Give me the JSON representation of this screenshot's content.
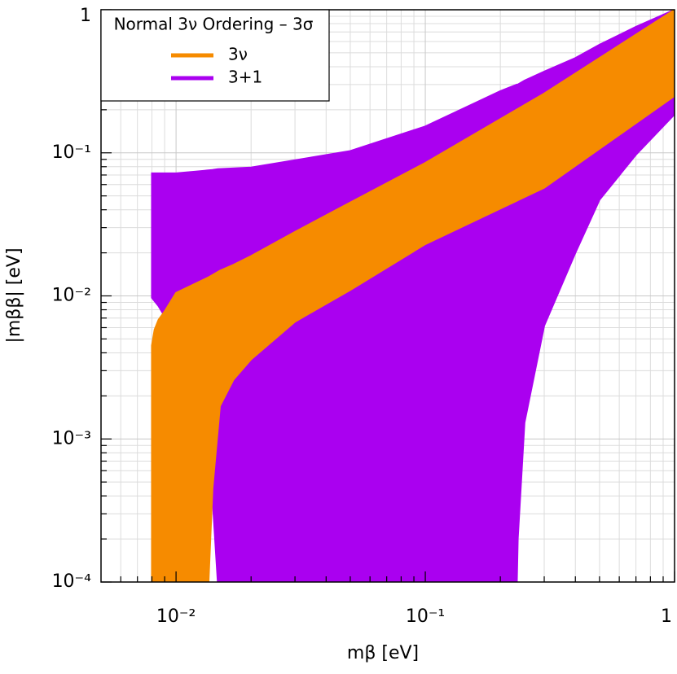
{
  "chart_data": {
    "type": "area-band",
    "xlabel": "mβ   [eV]",
    "ylabel": "|mββ|   [eV]",
    "xscale": "log",
    "yscale": "log",
    "grid": true,
    "xlim": [
      0.005,
      1
    ],
    "ylim": [
      0.0001,
      1
    ],
    "xticks": [
      {
        "value": 0.01,
        "label": "10⁻²"
      },
      {
        "value": 0.1,
        "label": "10⁻¹"
      },
      1
    ],
    "yticks": [
      {
        "value": 0.0001,
        "label": "10⁻⁴"
      },
      {
        "value": 0.001,
        "label": "10⁻³"
      },
      {
        "value": 0.01,
        "label": "10⁻²"
      },
      {
        "value": 0.1,
        "label": "10⁻¹"
      },
      1
    ],
    "xminor": [
      0.006,
      0.007,
      0.008,
      0.009,
      0.02,
      0.03,
      0.04,
      0.05,
      0.06,
      0.07,
      0.08,
      0.09,
      0.2,
      0.3,
      0.4,
      0.5,
      0.6,
      0.7,
      0.8,
      0.9
    ],
    "yminor": [
      0.0002,
      0.0003,
      0.0004,
      0.0005,
      0.0006,
      0.0007,
      0.0008,
      0.0009,
      0.002,
      0.003,
      0.004,
      0.005,
      0.006,
      0.007,
      0.008,
      0.009,
      0.02,
      0.03,
      0.04,
      0.05,
      0.06,
      0.07,
      0.08,
      0.09,
      0.2,
      0.3,
      0.4,
      0.5,
      0.6,
      0.7,
      0.8,
      0.9
    ],
    "legend_title": "Normal 3ν Ordering – 3σ",
    "legend": "upper left",
    "series": [
      {
        "name": "3ν",
        "color": "#f68b00",
        "x": [
          0.008,
          0.0082,
          0.0085,
          0.009,
          0.01,
          0.0135,
          0.014,
          0.015,
          0.017,
          0.02,
          0.03,
          0.05,
          0.1,
          0.3,
          1
        ],
        "upper": [
          0.0045,
          0.0058,
          0.0068,
          0.0078,
          0.0105,
          0.0135,
          0.014,
          0.015,
          0.0165,
          0.019,
          0.028,
          0.045,
          0.085,
          0.26,
          1
        ],
        "lower": [
          0.0001,
          0.0001,
          0.0001,
          0.0001,
          0.0001,
          0.0001,
          0.00045,
          0.0017,
          0.0026,
          0.0036,
          0.0066,
          0.011,
          0.023,
          0.057,
          0.25
        ]
      },
      {
        "name": "3+1",
        "color": "#aa00f0",
        "x": [
          0.008,
          0.0085,
          0.009,
          0.01,
          0.011,
          0.012,
          0.013,
          0.014,
          0.0147,
          0.02,
          0.05,
          0.1,
          0.2,
          0.233,
          0.235,
          0.25,
          0.3,
          0.4,
          0.5,
          0.7,
          1
        ],
        "upper": [
          0.072,
          0.072,
          0.072,
          0.072,
          0.073,
          0.074,
          0.075,
          0.076,
          0.077,
          0.079,
          0.103,
          0.153,
          0.27,
          0.3,
          0.3,
          0.32,
          0.37,
          0.46,
          0.57,
          0.76,
          1
        ],
        "lower": [
          0.0097,
          0.0085,
          0.0072,
          0.0058,
          0.0042,
          0.0022,
          0.001,
          0.00039,
          0.0001,
          0.0001,
          0.0001,
          0.0001,
          0.0001,
          0.0001,
          0.0002,
          0.0013,
          0.0062,
          0.02,
          0.047,
          0.097,
          0.186
        ]
      }
    ]
  }
}
